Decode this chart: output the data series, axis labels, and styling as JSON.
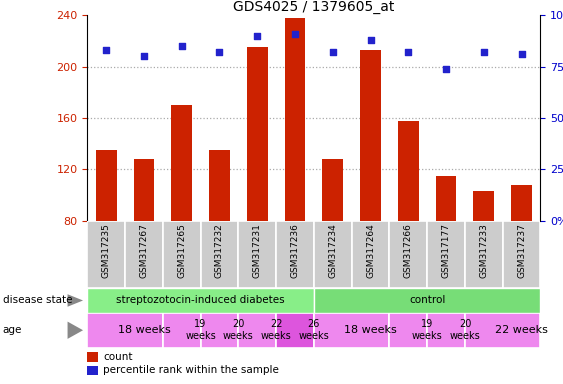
{
  "title": "GDS4025 / 1379605_at",
  "samples": [
    "GSM317235",
    "GSM317267",
    "GSM317265",
    "GSM317232",
    "GSM317231",
    "GSM317236",
    "GSM317234",
    "GSM317264",
    "GSM317266",
    "GSM317177",
    "GSM317233",
    "GSM317237"
  ],
  "counts": [
    135,
    128,
    170,
    135,
    215,
    238,
    128,
    213,
    158,
    115,
    103,
    108
  ],
  "percentiles": [
    83,
    80,
    85,
    82,
    90,
    91,
    82,
    88,
    82,
    74,
    82,
    81
  ],
  "ylim_left": [
    80,
    240
  ],
  "ylim_right": [
    0,
    100
  ],
  "yticks_left": [
    80,
    120,
    160,
    200,
    240
  ],
  "yticks_right": [
    0,
    25,
    50,
    75,
    100
  ],
  "bar_color": "#cc2200",
  "dot_color": "#2222cc",
  "disease_state_groups": [
    {
      "label": "streptozotocin-induced diabetes",
      "start": 0,
      "end": 6,
      "color": "#88ee88"
    },
    {
      "label": "control",
      "start": 6,
      "end": 12,
      "color": "#77dd77"
    }
  ],
  "age_groups": [
    {
      "label": "18 weeks",
      "start": 0,
      "end": 2,
      "color": "#ee88ee",
      "fontsize": 8,
      "two_line": false
    },
    {
      "label": "19\nweeks",
      "start": 2,
      "end": 3,
      "color": "#ee88ee",
      "fontsize": 7,
      "two_line": true
    },
    {
      "label": "20\nweeks",
      "start": 3,
      "end": 4,
      "color": "#ee88ee",
      "fontsize": 7,
      "two_line": true
    },
    {
      "label": "22\nweeks",
      "start": 4,
      "end": 5,
      "color": "#ee88ee",
      "fontsize": 7,
      "two_line": true
    },
    {
      "label": "26\nweeks",
      "start": 5,
      "end": 6,
      "color": "#dd55dd",
      "fontsize": 7,
      "two_line": true
    },
    {
      "label": "18 weeks",
      "start": 6,
      "end": 8,
      "color": "#ee88ee",
      "fontsize": 8,
      "two_line": false
    },
    {
      "label": "19\nweeks",
      "start": 8,
      "end": 9,
      "color": "#ee88ee",
      "fontsize": 7,
      "two_line": true
    },
    {
      "label": "20\nweeks",
      "start": 9,
      "end": 10,
      "color": "#ee88ee",
      "fontsize": 7,
      "two_line": true
    },
    {
      "label": "22 weeks",
      "start": 10,
      "end": 12,
      "color": "#ee88ee",
      "fontsize": 8,
      "two_line": false
    }
  ],
  "grid_dotted_values": [
    120,
    160,
    200
  ],
  "background_color": "#ffffff",
  "tick_label_color_left": "#cc2200",
  "tick_label_color_right": "#0000cc",
  "sample_bg_color": "#cccccc",
  "sample_divider_color": "#ffffff"
}
